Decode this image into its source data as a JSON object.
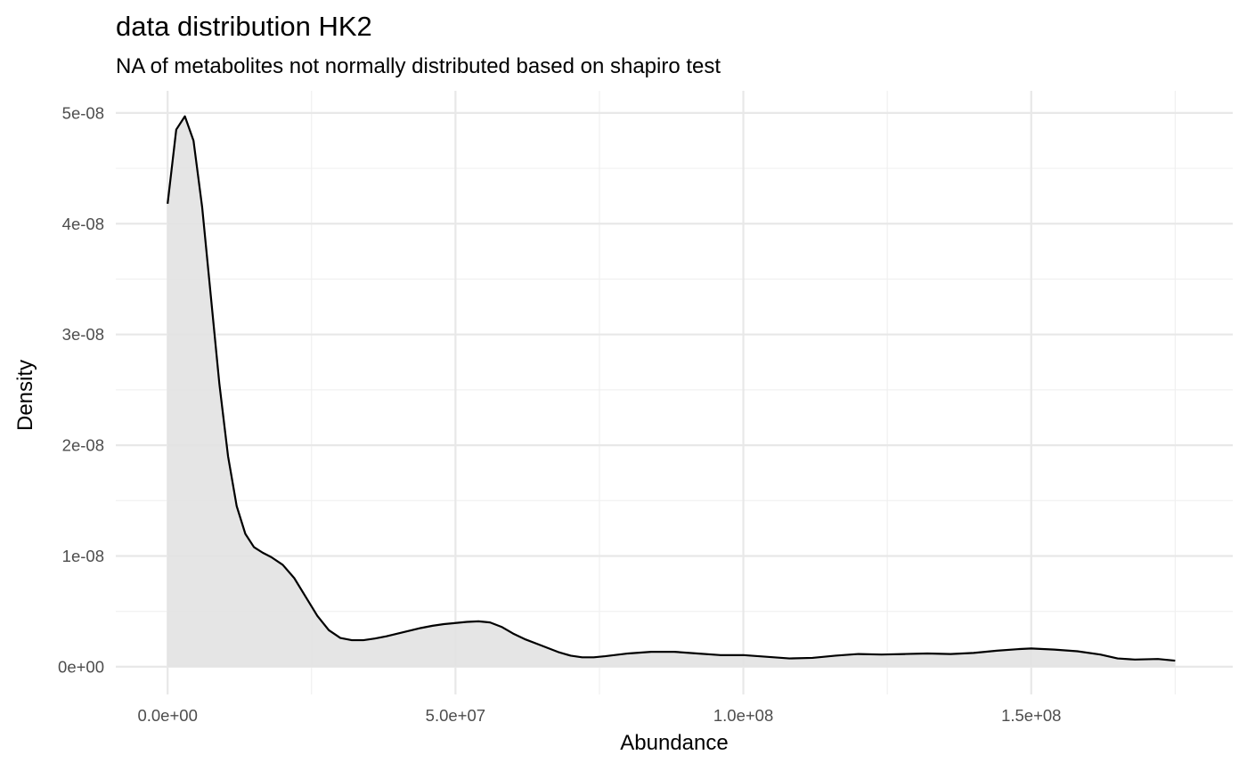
{
  "chart_data": {
    "type": "area",
    "title": "data distribution  HK2",
    "subtitle": "NA  of metabolites not normally distributed based on  shapiro test",
    "xlabel": "Abundance",
    "ylabel": "Density",
    "xlim": [
      -9000000,
      185000000
    ],
    "ylim": [
      -2.5e-09,
      5.2e-08
    ],
    "x_ticks": [
      {
        "value": 0,
        "label": "0.0e+00"
      },
      {
        "value": 50000000,
        "label": "5.0e+07"
      },
      {
        "value": 100000000,
        "label": "1.0e+08"
      },
      {
        "value": 150000000,
        "label": "1.5e+08"
      }
    ],
    "y_ticks": [
      {
        "value": 0,
        "label": "0e+00"
      },
      {
        "value": 1e-08,
        "label": "1e-08"
      },
      {
        "value": 2e-08,
        "label": "2e-08"
      },
      {
        "value": 3e-08,
        "label": "3e-08"
      },
      {
        "value": 4e-08,
        "label": "4e-08"
      },
      {
        "value": 5e-08,
        "label": "5e-08"
      }
    ],
    "grid": true,
    "legend": "none",
    "fill_color": "#e2e2e2",
    "line_color": "#000000",
    "series": [
      {
        "x": [
          0,
          1500000,
          3000000,
          4500000,
          6000000,
          7500000,
          9000000,
          10500000,
          12000000,
          13500000,
          15000000,
          16500000,
          18000000,
          20000000,
          22000000,
          24000000,
          26000000,
          28000000,
          30000000,
          32000000,
          34000000,
          36000000,
          38000000,
          40000000,
          42000000,
          44000000,
          46000000,
          48000000,
          50000000,
          52000000,
          54000000,
          56000000,
          58000000,
          60000000,
          62000000,
          65000000,
          68000000,
          70000000,
          72000000,
          74000000,
          76000000,
          80000000,
          84000000,
          88000000,
          92000000,
          96000000,
          100000000,
          104000000,
          108000000,
          112000000,
          116000000,
          120000000,
          124000000,
          128000000,
          132000000,
          136000000,
          140000000,
          144000000,
          148000000,
          150000000,
          154000000,
          158000000,
          162000000,
          165000000,
          168000000,
          172000000,
          175000000
        ],
        "y": [
          4.18e-08,
          4.85e-08,
          4.97e-08,
          4.75e-08,
          4.15e-08,
          3.35e-08,
          2.55e-08,
          1.9e-08,
          1.45e-08,
          1.2e-08,
          1.08e-08,
          1.03e-08,
          9.9e-09,
          9.2e-09,
          8e-09,
          6.3e-09,
          4.6e-09,
          3.3e-09,
          2.6e-09,
          2.4e-09,
          2.4e-09,
          2.55e-09,
          2.75e-09,
          3e-09,
          3.25e-09,
          3.5e-09,
          3.7e-09,
          3.85e-09,
          3.95e-09,
          4.05e-09,
          4.1e-09,
          4e-09,
          3.6e-09,
          3e-09,
          2.5e-09,
          1.9e-09,
          1.3e-09,
          1e-09,
          8.5e-10,
          8.5e-10,
          9.5e-10,
          1.2e-09,
          1.35e-09,
          1.35e-09,
          1.2e-09,
          1.05e-09,
          1.05e-09,
          9e-10,
          7.5e-10,
          8e-10,
          1e-09,
          1.15e-09,
          1.1e-09,
          1.15e-09,
          1.2e-09,
          1.15e-09,
          1.25e-09,
          1.45e-09,
          1.6e-09,
          1.65e-09,
          1.55e-09,
          1.4e-09,
          1.1e-09,
          7.5e-10,
          6.5e-10,
          7e-10,
          5.5e-10
        ]
      }
    ]
  }
}
